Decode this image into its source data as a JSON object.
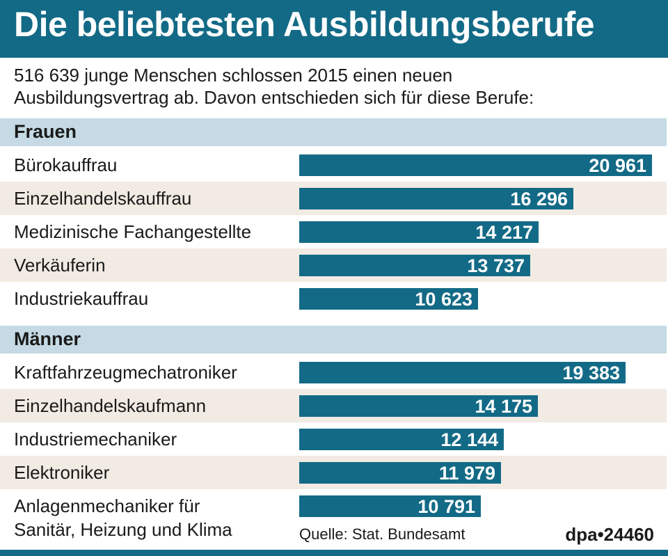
{
  "header": {
    "title": "Die beliebtesten Ausbildungsberufe"
  },
  "intro": {
    "line1": "516 639 junge Menschen schlossen 2015 einen neuen",
    "line2": "Ausbildungsvertrag ab. Davon entschieden sich für diese Berufe:"
  },
  "chart_data": {
    "type": "bar",
    "orientation": "horizontal",
    "groups": [
      {
        "name": "Frauen",
        "categories": [
          "Bürokauffrau",
          "Einzelhandelskauffrau",
          "Medizinische Fachangestellte",
          "Verkäuferin",
          "Industriekauffrau"
        ],
        "values": [
          20961,
          16296,
          14217,
          13737,
          10623
        ],
        "labels": [
          "20 961",
          "16 296",
          "14 217",
          "13 737",
          "10 623"
        ]
      },
      {
        "name": "Männer",
        "categories": [
          "Kraftfahrzeugmechatroniker",
          "Einzelhandelskaufmann",
          "Industriemechaniker",
          "Elektroniker",
          "Anlagenmechaniker für Sanitär, Heizung und Klima"
        ],
        "category_lines": [
          null,
          null,
          null,
          null,
          [
            "Anlagenmechaniker für",
            "Sanitär, Heizung und Klima"
          ]
        ],
        "values": [
          19383,
          14175,
          12144,
          11979,
          10791
        ],
        "labels": [
          "19 383",
          "14 175",
          "12 144",
          "11 979",
          "10 791"
        ]
      }
    ],
    "xlim": [
      0,
      21000
    ],
    "bar_color": "#136a86",
    "grid": false
  },
  "footer": {
    "source": "Quelle: Stat. Bundesamt",
    "credit": "dpa•24460"
  },
  "colors": {
    "brand": "#136a86",
    "section_band": "#c5dae4",
    "row_shade": "#f2ebe3"
  }
}
